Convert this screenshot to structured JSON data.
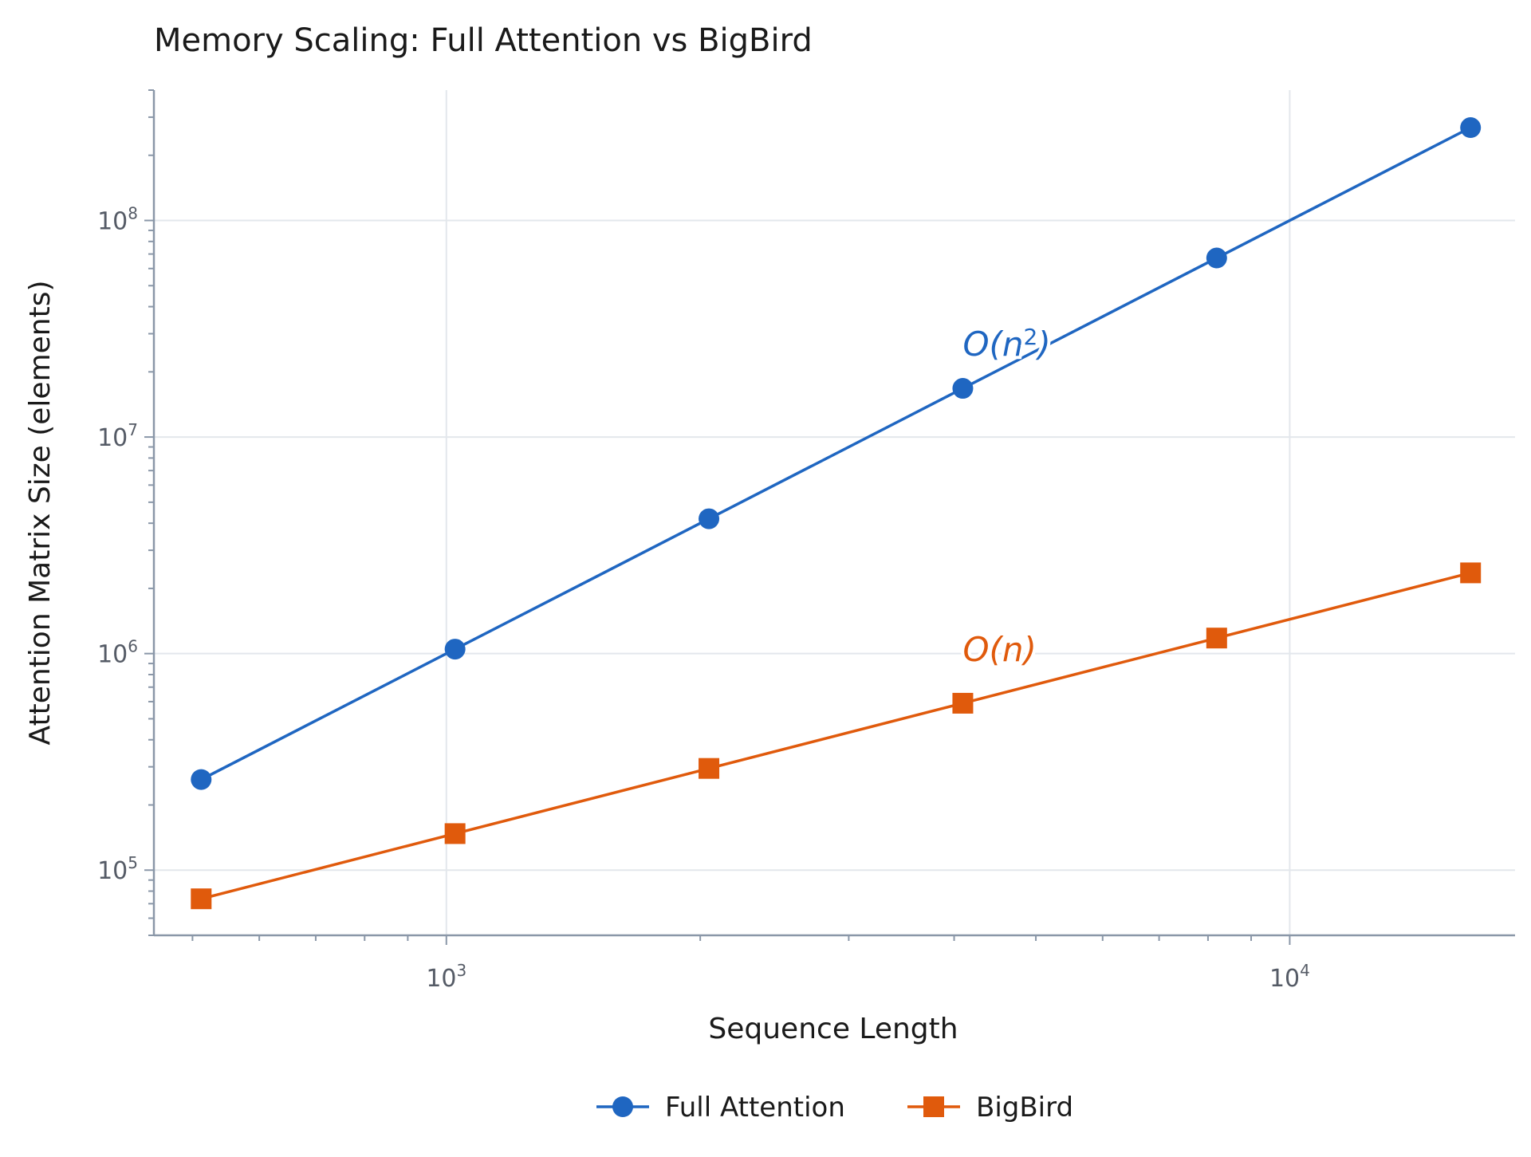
{
  "chart_data": {
    "type": "line",
    "title": "Memory Scaling: Full Attention vs BigBird",
    "xlabel": "Sequence Length",
    "ylabel": "Attention Matrix Size (elements)",
    "xscale": "log",
    "yscale": "log",
    "xlim": [
      450,
      18500
    ],
    "ylim": [
      50000,
      400000000
    ],
    "x_ticks": [
      {
        "value": 1000,
        "base": "10",
        "exp": "3"
      },
      {
        "value": 10000,
        "base": "10",
        "exp": "4"
      }
    ],
    "y_ticks": [
      {
        "value": 100000,
        "base": "10",
        "exp": "5"
      },
      {
        "value": 1000000,
        "base": "10",
        "exp": "6"
      },
      {
        "value": 10000000,
        "base": "10",
        "exp": "7"
      },
      {
        "value": 100000000,
        "base": "10",
        "exp": "8"
      }
    ],
    "grid": true,
    "legend_position": "bottom-center",
    "x": [
      512,
      1024,
      2048,
      4096,
      8192,
      16384
    ],
    "series": [
      {
        "name": "Full Attention",
        "color": "#1f66c1",
        "marker": "circle",
        "values": [
          262144,
          1048576,
          4194304,
          16777216,
          67108864,
          268435456
        ]
      },
      {
        "name": "BigBird",
        "color": "#e05a0c",
        "marker": "square",
        "values": [
          73728,
          147456,
          294912,
          589824,
          1179648,
          2359296
        ]
      }
    ],
    "annotations": [
      {
        "series": 0,
        "text": "O(n",
        "sup": "2",
        "tail": ")",
        "x": 4096,
        "y": 27000000
      },
      {
        "series": 1,
        "text": "O(n",
        "sup": "",
        "tail": ")",
        "x": 4096,
        "y": 1050000
      }
    ]
  }
}
